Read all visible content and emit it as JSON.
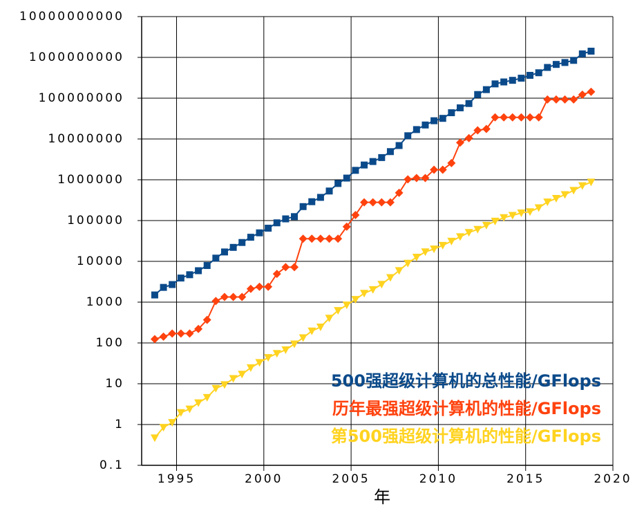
{
  "chart_data": {
    "type": "line",
    "xlabel": "年",
    "x": [
      1993.75,
      1994.25,
      1994.75,
      1995.25,
      1995.75,
      1996.25,
      1996.75,
      1997.25,
      1997.75,
      1998.25,
      1998.75,
      1999.25,
      1999.75,
      2000.25,
      2000.75,
      2001.25,
      2001.75,
      2002.25,
      2002.75,
      2003.25,
      2003.75,
      2004.25,
      2004.75,
      2005.25,
      2005.75,
      2006.25,
      2006.75,
      2007.25,
      2007.75,
      2008.25,
      2008.75,
      2009.25,
      2009.75,
      2010.25,
      2010.75,
      2011.25,
      2011.75,
      2012.25,
      2012.75,
      2013.25,
      2013.75,
      2014.25,
      2014.75,
      2015.25,
      2015.75,
      2016.25,
      2016.75,
      2017.25,
      2017.75,
      2018.25,
      2018.75
    ],
    "series": [
      {
        "name": "500强超级计算机的总性能/GFlops",
        "color": "#0b4a8a",
        "marker": "square",
        "values": [
          1500,
          2300,
          2700,
          3900,
          4700,
          5900,
          7900,
          12000,
          17000,
          22000,
          29000,
          39000,
          50000,
          65000,
          88000,
          110000,
          125000,
          220000,
          290000,
          370000,
          530000,
          810000,
          1100000,
          1700000,
          2300000,
          2800000,
          3500000,
          4900000,
          6900000,
          12000000,
          17000000,
          22000000,
          28000000,
          32000000,
          44000000,
          58000000,
          74000000,
          123000000,
          162000000,
          224000000,
          250000000,
          274000000,
          309000000,
          363000000,
          420000000,
          567000000,
          672000000,
          749000000,
          845000000,
          1220000000,
          1420000000
        ]
      },
      {
        "name": "历年最强超级计算机的性能/GFlops",
        "color": "#ff420e",
        "marker": "diamond",
        "values": [
          124,
          143,
          170,
          170,
          170,
          220,
          368,
          1068,
          1338,
          1338,
          1338,
          2121,
          2379,
          2379,
          4938,
          7226,
          7226,
          35860,
          35860,
          35860,
          35860,
          35860,
          70720,
          136800,
          280600,
          280600,
          280600,
          280600,
          478200,
          1026000,
          1105000,
          1105000,
          1759000,
          1759000,
          2566000,
          8162000,
          10510000,
          16320000,
          17590000,
          33860000,
          33860000,
          33860000,
          33860000,
          33860000,
          33860000,
          93010000,
          93010000,
          93010000,
          93010000,
          122300000,
          143500000
        ]
      },
      {
        "name": "第500强超级计算机的性能/GFlops",
        "color": "#ffd320",
        "marker": "triangle-down",
        "values": [
          0.47,
          0.85,
          1.12,
          1.96,
          2.4,
          3.4,
          4.6,
          7.7,
          9.5,
          13.4,
          17.1,
          24.7,
          33.1,
          43.8,
          55.1,
          67.8,
          94.3,
          134.3,
          196,
          245,
          403,
          624,
          851,
          1166,
          1646,
          2026,
          2737,
          4005,
          5929,
          9000,
          12640,
          17100,
          20050,
          24670,
          31120,
          40190,
          50900,
          60800,
          76500,
          96620,
          117800,
          133700,
          153400,
          164700,
          206300,
          286100,
          349300,
          432200,
          548300,
          715600,
          874800
        ]
      }
    ],
    "xlim": [
      1993,
      2020
    ],
    "xticks": [
      1995,
      2000,
      2005,
      2010,
      2015,
      2020
    ],
    "ylim": [
      0.1,
      10000000000
    ],
    "yticks": [
      0.1,
      1,
      10,
      100,
      1000,
      10000,
      100000,
      1000000,
      10000000,
      100000000,
      1000000000,
      10000000000
    ],
    "ylog": true,
    "grid": true,
    "legend": "lower right"
  }
}
